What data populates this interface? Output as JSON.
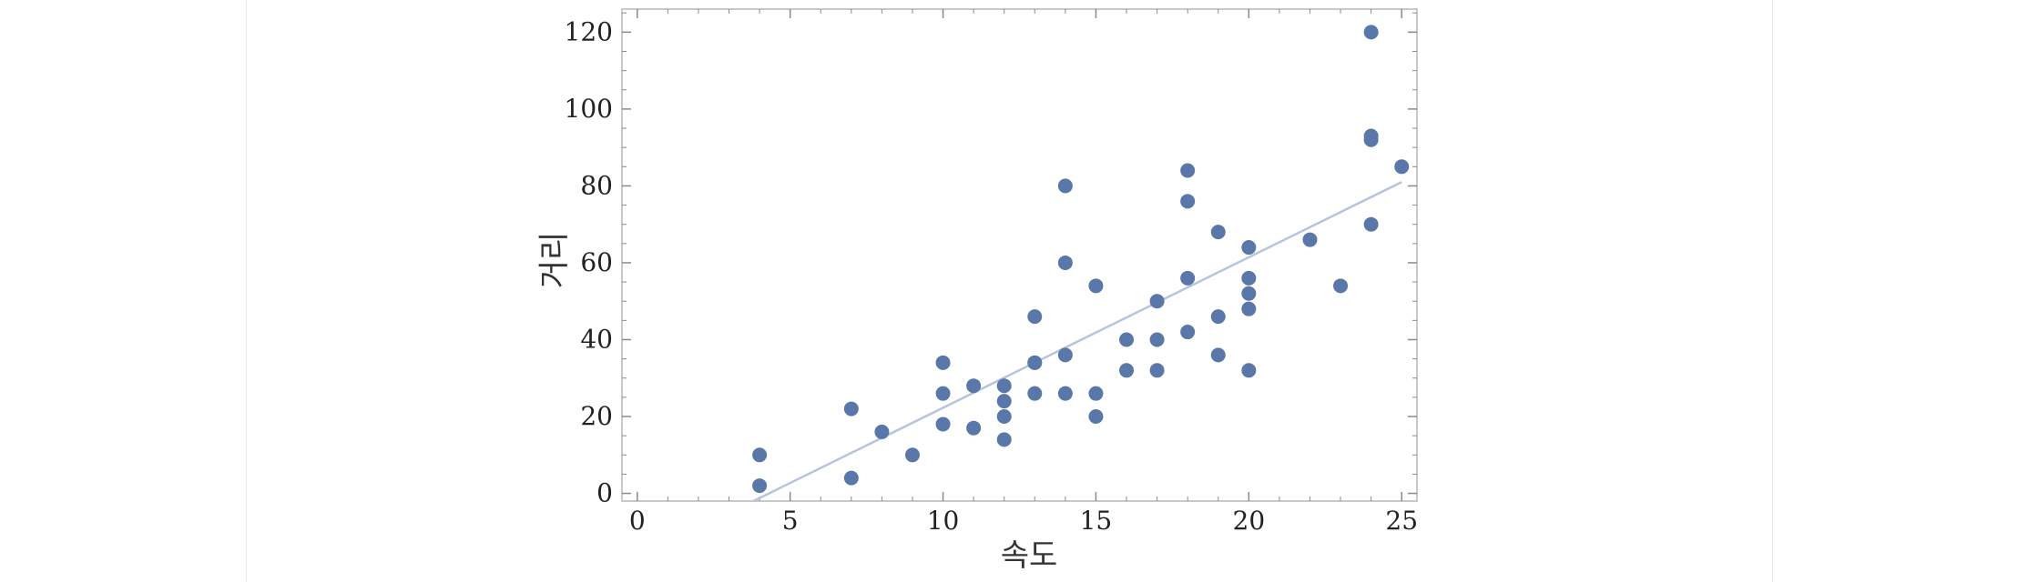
{
  "chart_data": {
    "type": "scatter",
    "title": "",
    "xlabel": "속도",
    "ylabel": "거리",
    "xlim": [
      -0.5,
      25.5
    ],
    "ylim": [
      -2,
      126
    ],
    "xticks": [
      0,
      5,
      10,
      15,
      20,
      25
    ],
    "yticks": [
      0,
      20,
      40,
      60,
      80,
      100,
      120
    ],
    "grid": false,
    "frame": true,
    "point_color": "#5a77aa",
    "line_color": "#b6c4dd",
    "frame_color": "#c9c9c9",
    "points": [
      [
        4,
        2
      ],
      [
        4,
        10
      ],
      [
        7,
        4
      ],
      [
        7,
        22
      ],
      [
        8,
        16
      ],
      [
        9,
        10
      ],
      [
        10,
        18
      ],
      [
        10,
        26
      ],
      [
        10,
        34
      ],
      [
        11,
        17
      ],
      [
        11,
        28
      ],
      [
        12,
        14
      ],
      [
        12,
        20
      ],
      [
        12,
        24
      ],
      [
        12,
        28
      ],
      [
        13,
        26
      ],
      [
        13,
        34
      ],
      [
        13,
        34
      ],
      [
        13,
        46
      ],
      [
        14,
        26
      ],
      [
        14,
        36
      ],
      [
        14,
        60
      ],
      [
        14,
        80
      ],
      [
        15,
        20
      ],
      [
        15,
        26
      ],
      [
        15,
        54
      ],
      [
        16,
        32
      ],
      [
        16,
        40
      ],
      [
        17,
        32
      ],
      [
        17,
        40
      ],
      [
        17,
        50
      ],
      [
        18,
        42
      ],
      [
        18,
        56
      ],
      [
        18,
        76
      ],
      [
        18,
        84
      ],
      [
        19,
        36
      ],
      [
        19,
        46
      ],
      [
        19,
        68
      ],
      [
        20,
        32
      ],
      [
        20,
        48
      ],
      [
        20,
        52
      ],
      [
        20,
        56
      ],
      [
        20,
        64
      ],
      [
        22,
        66
      ],
      [
        23,
        54
      ],
      [
        24,
        70
      ],
      [
        24,
        92
      ],
      [
        24,
        93
      ],
      [
        24,
        120
      ],
      [
        25,
        85
      ]
    ],
    "fit_line": {
      "x_start": 3.8,
      "y_start": -2,
      "x_end": 25,
      "y_end": 81
    }
  }
}
